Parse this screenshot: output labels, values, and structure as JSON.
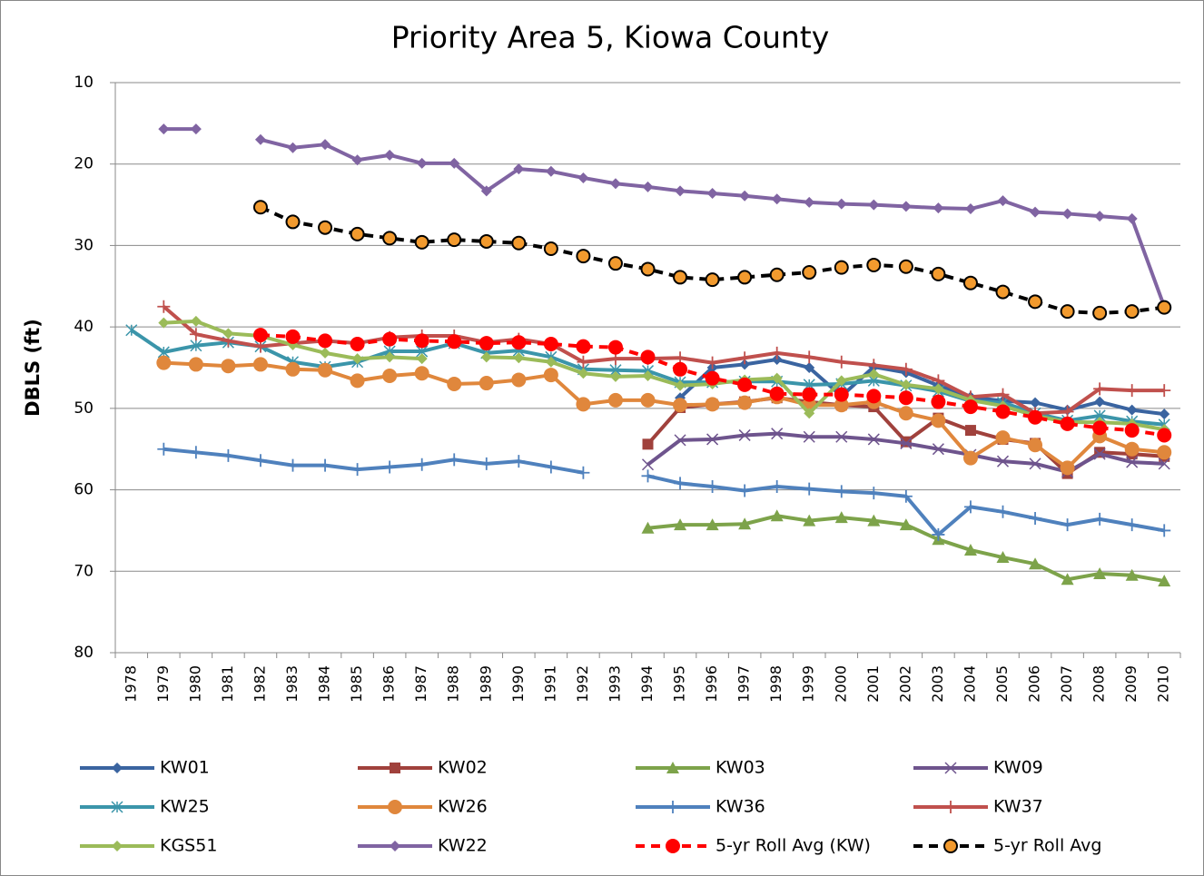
{
  "chart_data": {
    "type": "line",
    "title": "Priority Area 5, Kiowa County",
    "y_label": "DBLS (ft)",
    "categories": [
      "1978",
      "1979",
      "1980",
      "1981",
      "1982",
      "1983",
      "1984",
      "1985",
      "1986",
      "1987",
      "1988",
      "1989",
      "1990",
      "1991",
      "1992",
      "1993",
      "1994",
      "1995",
      "1996",
      "1997",
      "1998",
      "1999",
      "2000",
      "2001",
      "2002",
      "2003",
      "2004",
      "2005",
      "2006",
      "2007",
      "2008",
      "2009",
      "2010"
    ],
    "ylim": [
      10,
      80
    ],
    "y_inverted": true,
    "yticks": [
      10,
      20,
      30,
      40,
      50,
      60,
      70,
      80
    ],
    "grid": true,
    "legend": "bottom",
    "series": [
      {
        "name": "KW01",
        "color": "#3a64a0",
        "marker": "diamond",
        "values": [
          null,
          null,
          null,
          null,
          null,
          null,
          null,
          null,
          null,
          null,
          null,
          null,
          null,
          null,
          null,
          null,
          null,
          48.7,
          45.0,
          44.6,
          44.0,
          45.0,
          48.5,
          44.9,
          45.6,
          47.2,
          48.6,
          49.1,
          49.3,
          50.2,
          49.2,
          50.2,
          50.7
        ]
      },
      {
        "name": "KW02",
        "color": "#a0413c",
        "marker": "square",
        "values": [
          null,
          null,
          null,
          null,
          null,
          null,
          null,
          null,
          null,
          null,
          null,
          null,
          null,
          null,
          null,
          null,
          54.4,
          49.9,
          49.5,
          49.2,
          48.7,
          49.2,
          49.6,
          49.8,
          54.1,
          51.2,
          52.7,
          53.8,
          54.3,
          58.0,
          55.4,
          55.6,
          55.9
        ]
      },
      {
        "name": "KW03",
        "color": "#7da34a",
        "marker": "triangle",
        "values": [
          null,
          null,
          null,
          null,
          null,
          null,
          null,
          null,
          null,
          null,
          null,
          null,
          null,
          null,
          null,
          null,
          64.7,
          64.3,
          64.3,
          64.2,
          63.2,
          63.8,
          63.4,
          63.8,
          64.3,
          66.1,
          67.4,
          68.3,
          69.1,
          71.0,
          70.3,
          70.5,
          71.2
        ]
      },
      {
        "name": "KW09",
        "color": "#6e548d",
        "marker": "x",
        "values": [
          null,
          null,
          null,
          null,
          null,
          null,
          null,
          null,
          null,
          null,
          null,
          null,
          null,
          null,
          null,
          null,
          56.9,
          53.9,
          53.8,
          53.3,
          53.1,
          53.5,
          53.5,
          53.8,
          54.3,
          55.0,
          55.7,
          56.5,
          56.8,
          57.8,
          55.6,
          56.6,
          56.8
        ]
      },
      {
        "name": "KW25",
        "color": "#3b95aa",
        "marker": "asterisk",
        "values": [
          40.4,
          43.1,
          42.3,
          41.9,
          42.4,
          44.3,
          44.9,
          44.3,
          43.0,
          43.0,
          42.0,
          43.2,
          42.9,
          43.7,
          45.2,
          45.3,
          45.4,
          46.8,
          46.8,
          46.7,
          46.7,
          47.1,
          47.0,
          46.6,
          47.2,
          47.9,
          49.1,
          49.3,
          50.6,
          51.5,
          50.9,
          51.6,
          52.0
        ]
      },
      {
        "name": "KW26",
        "color": "#e0873c",
        "marker": "circle",
        "values": [
          null,
          44.4,
          44.6,
          44.8,
          44.6,
          45.2,
          45.3,
          46.6,
          46.0,
          45.7,
          47.0,
          46.9,
          46.5,
          45.9,
          49.5,
          49.0,
          49.0,
          49.6,
          49.5,
          49.3,
          48.6,
          49.6,
          49.6,
          49.2,
          50.6,
          51.5,
          56.1,
          53.6,
          54.5,
          57.3,
          53.4,
          55.0,
          55.4
        ]
      },
      {
        "name": "KW36",
        "color": "#4f81bd",
        "marker": "plus",
        "values": [
          null,
          55.0,
          55.4,
          55.8,
          56.4,
          57.0,
          57.0,
          57.5,
          57.2,
          56.9,
          56.3,
          56.8,
          56.5,
          57.2,
          57.9,
          null,
          58.3,
          59.2,
          59.6,
          60.1,
          59.6,
          59.9,
          60.2,
          60.4,
          60.8,
          65.5,
          62.1,
          62.7,
          63.5,
          64.3,
          63.6,
          64.3,
          65.0
        ]
      },
      {
        "name": "KW37",
        "color": "#c0504d",
        "marker": "plus",
        "values": [
          null,
          37.5,
          40.9,
          41.7,
          42.4,
          42.0,
          41.7,
          42.0,
          41.3,
          41.1,
          41.1,
          41.9,
          41.5,
          42.1,
          44.3,
          43.9,
          43.9,
          43.8,
          44.4,
          43.8,
          43.2,
          43.7,
          44.3,
          44.7,
          45.2,
          46.6,
          48.6,
          48.3,
          50.6,
          50.4,
          47.6,
          47.8,
          47.8
        ]
      },
      {
        "name": "KGS51",
        "color": "#9bbb59",
        "marker": "diamond",
        "values": [
          null,
          39.5,
          39.3,
          40.8,
          41.1,
          42.2,
          43.2,
          43.9,
          43.7,
          43.9,
          null,
          43.7,
          43.8,
          44.3,
          45.7,
          46.1,
          46.0,
          47.2,
          47.0,
          46.5,
          46.3,
          50.6,
          46.6,
          45.8,
          47.1,
          47.6,
          49.0,
          49.7,
          50.9,
          51.7,
          51.7,
          51.9,
          52.6
        ]
      },
      {
        "name": "KW22",
        "color": "#8064a2",
        "marker": "diamond",
        "values": [
          null,
          15.7,
          15.7,
          null,
          17.0,
          18.0,
          17.6,
          19.5,
          18.9,
          19.9,
          19.9,
          23.3,
          20.6,
          20.9,
          21.7,
          22.4,
          22.8,
          23.3,
          23.6,
          23.9,
          24.3,
          24.7,
          24.9,
          25.0,
          25.2,
          25.4,
          25.5,
          24.5,
          25.9,
          26.1,
          26.4,
          26.7,
          37.5
        ]
      },
      {
        "name": "5-yr Roll Avg (KW)",
        "color": "#ff0000",
        "marker": "circle",
        "marker_color": "#ff0000",
        "dashed": true,
        "values": [
          null,
          null,
          null,
          null,
          41.0,
          41.2,
          41.7,
          42.1,
          41.5,
          41.7,
          41.8,
          42.0,
          41.9,
          42.1,
          42.4,
          42.5,
          43.7,
          45.2,
          46.3,
          47.1,
          48.2,
          48.3,
          48.3,
          48.5,
          48.7,
          49.2,
          49.8,
          50.4,
          51.1,
          51.9,
          52.4,
          52.7,
          53.3
        ]
      },
      {
        "name": "5-yr Roll Avg",
        "color": "#000000",
        "marker": "circle",
        "marker_color": "#f29a2e",
        "dashed": true,
        "values": [
          null,
          null,
          null,
          null,
          25.3,
          27.1,
          27.8,
          28.6,
          29.1,
          29.6,
          29.3,
          29.5,
          29.7,
          30.4,
          31.3,
          32.2,
          32.9,
          33.9,
          34.2,
          33.9,
          33.6,
          33.3,
          32.7,
          32.4,
          32.6,
          33.5,
          34.6,
          35.7,
          36.9,
          38.1,
          38.3,
          38.1,
          37.6
        ]
      }
    ]
  }
}
